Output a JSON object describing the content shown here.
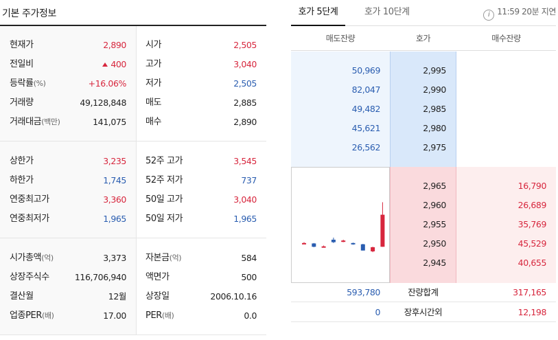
{
  "basic": {
    "title": "기본 주가정보",
    "block1": {
      "left": [
        {
          "label": "현재가",
          "value": "2,890",
          "color": "up"
        },
        {
          "label": "전일비",
          "value": "400",
          "color": "up",
          "arrow": "up"
        },
        {
          "label": "등락률",
          "unit": "(%)",
          "value": "+16.06%",
          "color": "up"
        },
        {
          "label": "거래량",
          "value": "49,128,848",
          "color": "plain"
        },
        {
          "label": "거래대금",
          "unit": "(백만)",
          "value": "141,075",
          "color": "plain"
        }
      ],
      "right": [
        {
          "label": "시가",
          "value": "2,505",
          "color": "up"
        },
        {
          "label": "고가",
          "value": "3,040",
          "color": "up"
        },
        {
          "label": "저가",
          "value": "2,505",
          "color": "down"
        },
        {
          "label": "매도",
          "value": "2,885",
          "color": "plain"
        },
        {
          "label": "매수",
          "value": "2,890",
          "color": "plain"
        }
      ]
    },
    "block2": {
      "left": [
        {
          "label": "상한가",
          "value": "3,235",
          "color": "up"
        },
        {
          "label": "하한가",
          "value": "1,745",
          "color": "down"
        },
        {
          "label": "연중최고가",
          "value": "3,360",
          "color": "up"
        },
        {
          "label": "연중최저가",
          "value": "1,965",
          "color": "down"
        }
      ],
      "right": [
        {
          "label": "52주 고가",
          "value": "3,545",
          "color": "up"
        },
        {
          "label": "52주 저가",
          "value": "737",
          "color": "down"
        },
        {
          "label": "50일 고가",
          "value": "3,040",
          "color": "up"
        },
        {
          "label": "50일 저가",
          "value": "1,965",
          "color": "down"
        }
      ]
    },
    "block3": {
      "left": [
        {
          "label": "시가총액",
          "unit": "(억)",
          "value": "3,373",
          "color": "plain"
        },
        {
          "label": "상장주식수",
          "value": "116,706,940",
          "color": "plain"
        },
        {
          "label": "결산월",
          "value": "12월",
          "color": "plain"
        },
        {
          "label": "업종PER",
          "unit": "(배)",
          "value": "17.00",
          "color": "plain"
        }
      ],
      "right": [
        {
          "label": "자본금",
          "unit": "(억)",
          "value": "584",
          "color": "plain"
        },
        {
          "label": "액면가",
          "value": "500",
          "color": "plain"
        },
        {
          "label": "상장일",
          "value": "2006.10.16",
          "color": "plain"
        },
        {
          "label": "PER",
          "unit": "(배)",
          "value": "0.0",
          "color": "plain"
        }
      ]
    }
  },
  "orderbook": {
    "tabs": [
      {
        "label": "호가 5단계",
        "active": true
      },
      {
        "label": "호가 10단계",
        "active": false
      }
    ],
    "info_icon": "i",
    "delay_text": "11:59 20분 지연",
    "headers": [
      "매도잔량",
      "호가",
      "매수잔량"
    ],
    "asks": [
      {
        "volume": "50,969",
        "price": "2,995"
      },
      {
        "volume": "82,047",
        "price": "2,990"
      },
      {
        "volume": "49,482",
        "price": "2,985"
      },
      {
        "volume": "45,621",
        "price": "2,980"
      },
      {
        "volume": "26,562",
        "price": "2,975"
      }
    ],
    "bids": [
      {
        "price": "2,965",
        "volume": "16,790"
      },
      {
        "price": "2,960",
        "volume": "26,689"
      },
      {
        "price": "2,955",
        "volume": "35,769"
      },
      {
        "price": "2,950",
        "volume": "45,529"
      },
      {
        "price": "2,945",
        "volume": "40,655"
      }
    ],
    "total": {
      "label": "잔량합계",
      "ask": "593,780",
      "bid": "317,165"
    },
    "after_hours": {
      "label": "장후시간외",
      "ask": "0",
      "bid": "12,198"
    }
  },
  "colors": {
    "up": "#d7263d",
    "down": "#2a5db0"
  },
  "mini_chart": {
    "type": "candlestick",
    "candles": [
      {
        "o": 2545,
        "c": 2550,
        "h": 2560,
        "l": 2540
      },
      {
        "o": 2545,
        "c": 2505,
        "h": 2550,
        "l": 2500
      },
      {
        "o": 2505,
        "c": 2510,
        "h": 2520,
        "l": 2495
      },
      {
        "o": 2590,
        "c": 2560,
        "h": 2615,
        "l": 2550
      },
      {
        "o": 2570,
        "c": 2580,
        "h": 2590,
        "l": 2560
      },
      {
        "o": 2550,
        "c": 2535,
        "h": 2555,
        "l": 2530
      },
      {
        "o": 2535,
        "c": 2460,
        "h": 2540,
        "l": 2460
      },
      {
        "o": 2450,
        "c": 2500,
        "h": 2505,
        "l": 2440
      },
      {
        "o": 2505,
        "c": 2890,
        "h": 3040,
        "l": 2505
      }
    ]
  }
}
